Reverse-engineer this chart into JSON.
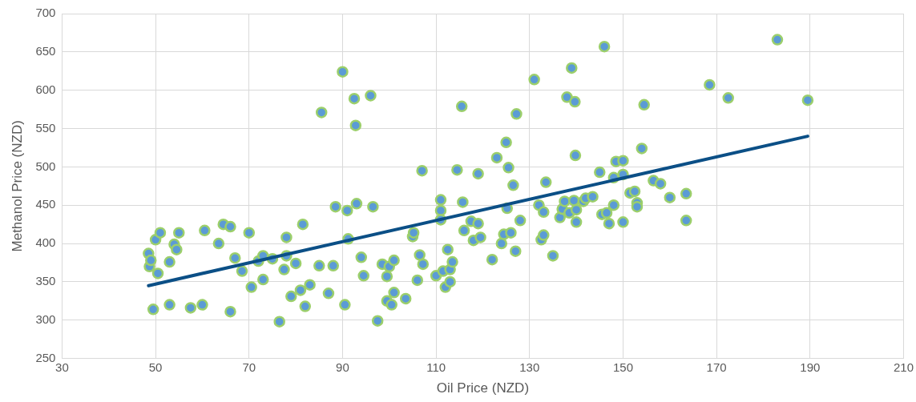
{
  "chart_data": {
    "type": "scatter",
    "xlabel": "Oil Price (NZD)",
    "ylabel": "Methanol Price (NZD)",
    "xlim": [
      30,
      210
    ],
    "xticks": [
      30,
      50,
      70,
      90,
      110,
      130,
      150,
      170,
      190,
      210
    ],
    "ylim": [
      250,
      700
    ],
    "yticks": [
      250,
      300,
      350,
      400,
      450,
      500,
      550,
      600,
      650,
      700
    ],
    "grid": true,
    "legend": false,
    "marker": "circle",
    "series": [
      {
        "type": "scatter",
        "color": "#5b9bd5",
        "x": [
          48.5,
          48.7,
          49,
          49.5,
          50,
          50.5,
          51,
          53,
          53,
          54,
          54.5,
          55,
          57.5,
          60,
          60.5,
          63.5,
          64.5,
          66,
          66,
          67,
          68.5,
          70,
          70.5,
          72,
          73,
          73,
          75,
          76.5,
          77.5,
          78,
          78,
          79,
          80,
          81,
          81.5,
          82,
          83,
          85,
          85.5,
          87,
          88,
          88.5,
          90,
          90.5,
          91,
          91.2,
          92.5,
          92.8,
          93,
          94,
          94.5,
          96,
          96.5,
          97.5,
          98.5,
          99.5,
          99.5,
          100,
          100.5,
          101,
          101,
          103.5,
          105,
          105.2,
          106,
          106.5,
          107,
          107.2,
          110,
          111,
          111,
          111,
          111.5,
          112,
          112.5,
          113,
          113,
          113.5,
          114.5,
          115.5,
          115.7,
          116,
          117.5,
          118,
          119,
          119,
          119.5,
          122,
          123,
          124,
          124.5,
          125,
          125.2,
          125.5,
          126,
          126.5,
          127,
          127.2,
          128,
          131,
          132,
          132.5,
          133,
          133,
          133.5,
          135,
          136.5,
          137,
          137.5,
          138,
          138.5,
          139,
          139.5,
          139.7,
          139.8,
          140,
          140,
          141.5,
          142,
          143.5,
          145,
          145.5,
          146,
          146.5,
          147,
          148,
          148,
          148.5,
          150,
          150,
          150,
          151.5,
          152.5,
          153,
          153,
          154,
          154.5,
          156.5,
          158,
          160,
          163.5,
          163.5,
          168.5,
          172.5,
          183,
          189.5
        ],
        "values": [
          387,
          370,
          378,
          314,
          405,
          361,
          414,
          376,
          320,
          399,
          392,
          414,
          316,
          320,
          417,
          400,
          425,
          422,
          311,
          381,
          364,
          414,
          343,
          377,
          384,
          353,
          380,
          298,
          366,
          384,
          408,
          331,
          374,
          339,
          425,
          318,
          346,
          371,
          571,
          335,
          371,
          448,
          624,
          320,
          443,
          406,
          589,
          554,
          452,
          382,
          358,
          593,
          448,
          299,
          373,
          357,
          325,
          370,
          320,
          378,
          336,
          328,
          409,
          414,
          352,
          385,
          495,
          373,
          358,
          457,
          443,
          431,
          364,
          343,
          392,
          350,
          366,
          376,
          496,
          579,
          454,
          417,
          429,
          404,
          491,
          426,
          408,
          379,
          512,
          400,
          412,
          532,
          446,
          499,
          414,
          476,
          390,
          569,
          430,
          614,
          450,
          405,
          441,
          411,
          480,
          384,
          434,
          445,
          455,
          591,
          440,
          629,
          456,
          585,
          515,
          444,
          428,
          455,
          459,
          461,
          493,
          438,
          657,
          440,
          426,
          486,
          450,
          507,
          508,
          490,
          428,
          466,
          468,
          453,
          448,
          524,
          581,
          482,
          478,
          460,
          465,
          430,
          607,
          590,
          666,
          587
        ]
      },
      {
        "type": "line",
        "color": "#0b4f86",
        "marker": "none",
        "line_style": "solid",
        "x": [
          48.5,
          189.5
        ],
        "values": [
          345,
          540
        ]
      }
    ]
  }
}
